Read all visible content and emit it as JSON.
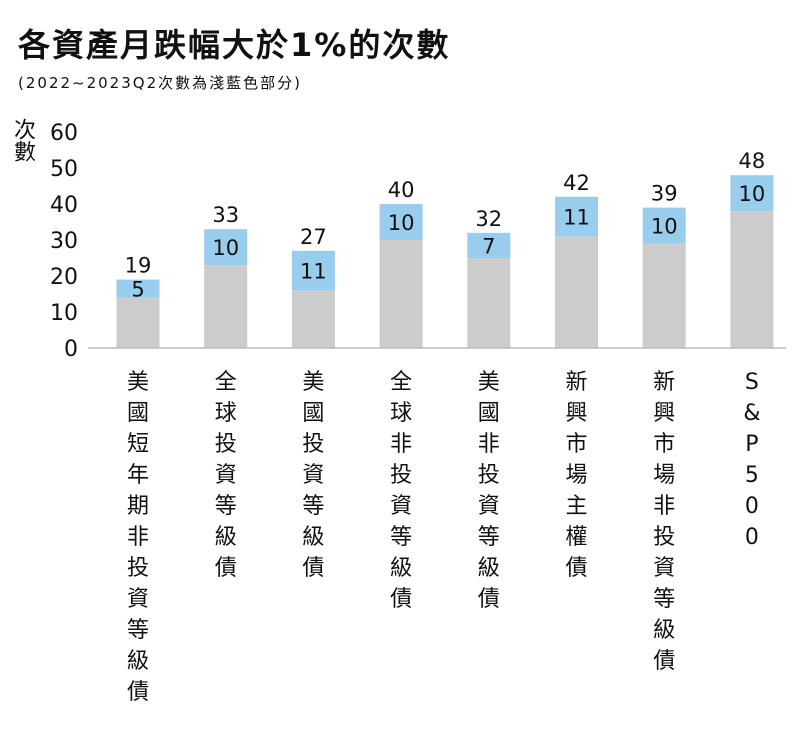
{
  "title": "各資產月跌幅大於1%的次數",
  "subtitle": "(2022~2023Q2次數為淺藍色部分)",
  "chart_data": {
    "type": "bar",
    "stacked": true,
    "title": "各資產月跌幅大於1%的次數",
    "subtitle": "(2022~2023Q2次數為淺藍色部分)",
    "ylabel": "次數",
    "xlabel": "",
    "ylim": [
      0,
      60
    ],
    "yticks": [
      0,
      10,
      20,
      30,
      40,
      50,
      60
    ],
    "grid": false,
    "categories": [
      "美國短年期非投資等級債",
      "全球投資等級債",
      "美國投資等級債",
      "全球非投資等級債",
      "美國非投資等級債",
      "新興市場主權債",
      "新興市場非投資等級債",
      "S&P500"
    ],
    "totals": [
      19,
      33,
      27,
      40,
      32,
      42,
      39,
      48
    ],
    "series": [
      {
        "values": [
          14,
          23,
          16,
          30,
          25,
          31,
          29,
          38
        ],
        "color": "#cccccc"
      },
      {
        "values": [
          5,
          10,
          11,
          10,
          7,
          11,
          10,
          10
        ],
        "color": "#99cdee"
      }
    ]
  }
}
